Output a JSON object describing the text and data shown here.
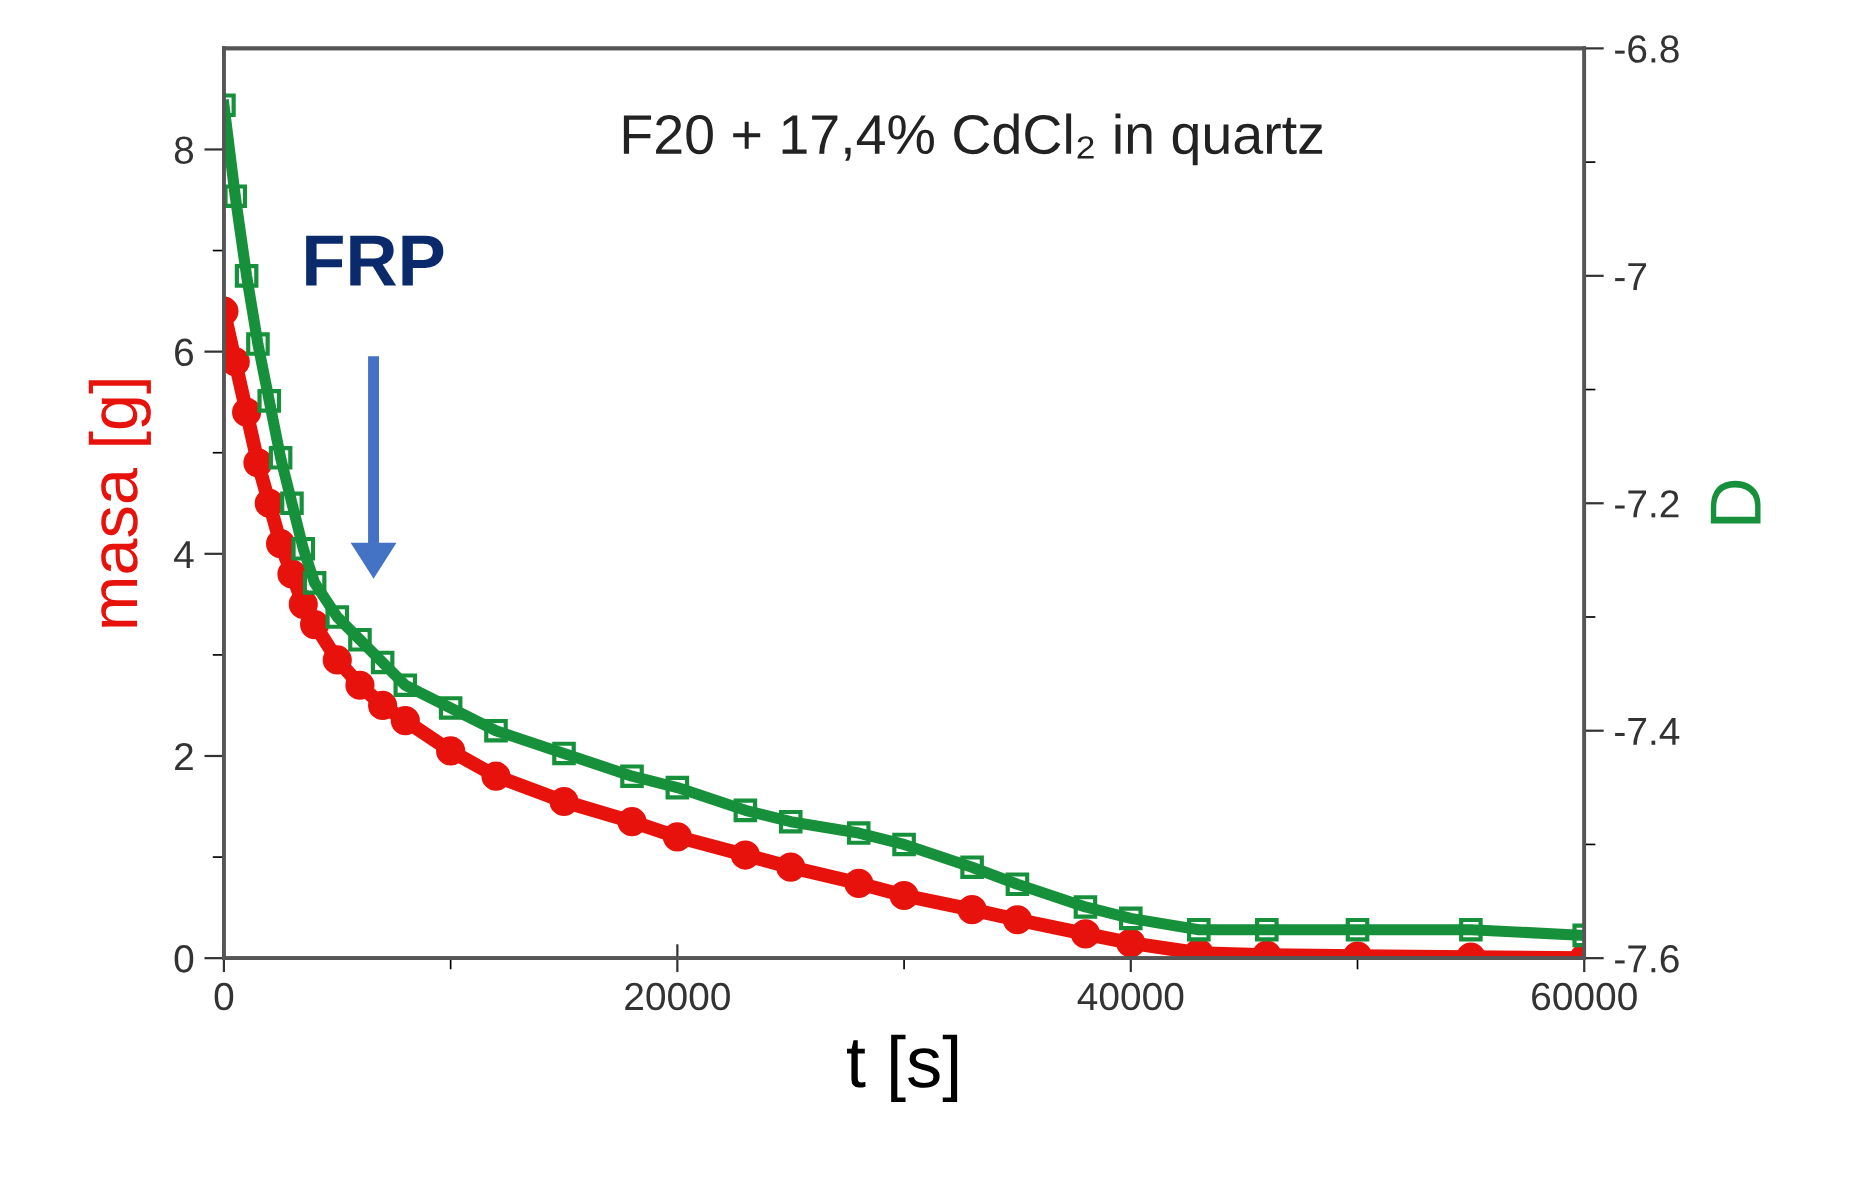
{
  "chart_data": {
    "type": "line",
    "xlabel": "t [s]",
    "ylabel": "masa [g]",
    "y2label": "D",
    "annotations": [
      "F20 + 17,4% CdCl₂ in quartz",
      "FRP"
    ],
    "xlim": [
      0,
      60000
    ],
    "xticks": [
      0,
      20000,
      40000,
      60000
    ],
    "ylim": [
      0,
      9
    ],
    "yticks": [
      0,
      2,
      4,
      6,
      8
    ],
    "y2lim": [
      -7.6,
      -6.8
    ],
    "y2ticks": [
      -7.6,
      -7.4,
      -7.2,
      -7,
      -6.8
    ],
    "grid": false,
    "legend": false,
    "series": [
      {
        "color": "#e8120c",
        "marker": "circle",
        "x": [
          0,
          500,
          1000,
          1500,
          2000,
          2500,
          3000,
          3500,
          4000,
          5000,
          6000,
          7000,
          8000,
          10000,
          12000,
          15000,
          18000,
          20000,
          23000,
          25000,
          28000,
          30000,
          33000,
          35000,
          38000,
          40000,
          43000,
          46000,
          50000,
          55000,
          60000
        ],
        "values": [
          6.4,
          5.9,
          5.4,
          4.9,
          4.5,
          4.1,
          3.8,
          3.5,
          3.3,
          2.95,
          2.7,
          2.5,
          2.35,
          2.05,
          1.8,
          1.55,
          1.35,
          1.2,
          1.02,
          0.9,
          0.74,
          0.62,
          0.48,
          0.38,
          0.24,
          0.15,
          0.05,
          0.03,
          0.02,
          0.01,
          0.0
        ]
      },
      {
        "color": "#16903a",
        "marker": "square",
        "axis": "y2",
        "x": [
          0,
          500,
          1000,
          1500,
          2000,
          2500,
          3000,
          3500,
          4000,
          5000,
          6000,
          7000,
          8000,
          10000,
          12000,
          15000,
          18000,
          20000,
          23000,
          25000,
          28000,
          30000,
          33000,
          35000,
          38000,
          40000,
          43000,
          46000,
          50000,
          55000,
          60000
        ],
        "values": [
          -6.85,
          -6.93,
          -7.0,
          -7.06,
          -7.11,
          -7.16,
          -7.2,
          -7.24,
          -7.27,
          -7.3,
          -7.32,
          -7.34,
          -7.36,
          -7.38,
          -7.4,
          -7.42,
          -7.44,
          -7.45,
          -7.47,
          -7.48,
          -7.49,
          -7.5,
          -7.52,
          -7.535,
          -7.555,
          -7.565,
          -7.575,
          -7.575,
          -7.575,
          -7.575,
          -7.58
        ]
      }
    ]
  }
}
